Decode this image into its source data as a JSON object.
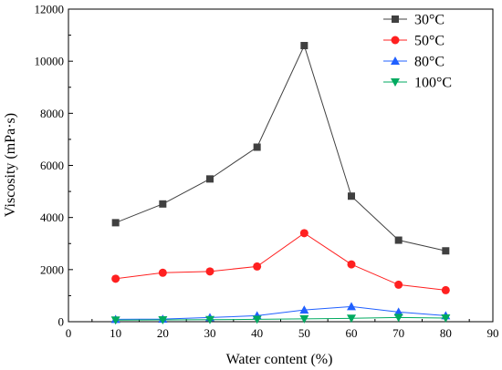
{
  "chart_data": {
    "type": "line",
    "xlabel": "Water content (%)",
    "ylabel": "Viscosity (mPa·s)",
    "xlim": [
      0,
      90
    ],
    "ylim": [
      0,
      12000
    ],
    "xticks": [
      0,
      10,
      20,
      30,
      40,
      50,
      60,
      70,
      80,
      90
    ],
    "yticks": [
      0,
      2000,
      4000,
      6000,
      8000,
      10000,
      12000
    ],
    "x": [
      10,
      20,
      30,
      40,
      50,
      60,
      70,
      80
    ],
    "grid": false,
    "legend_position": "top-right",
    "series": [
      {
        "name": "30°C",
        "color": "#404040",
        "marker": "square",
        "values": [
          3800,
          4520,
          5480,
          6700,
          10600,
          4820,
          3130,
          2720
        ]
      },
      {
        "name": "50°C",
        "color": "#ff2020",
        "marker": "circle",
        "values": [
          1650,
          1880,
          1930,
          2120,
          3400,
          2200,
          1420,
          1210
        ]
      },
      {
        "name": "80°C",
        "color": "#2060ff",
        "marker": "triangle-up",
        "values": [
          90,
          100,
          160,
          230,
          450,
          580,
          370,
          230
        ]
      },
      {
        "name": "100°C",
        "color": "#00aa60",
        "marker": "triangle-down",
        "values": [
          60,
          70,
          80,
          90,
          110,
          130,
          160,
          140
        ]
      }
    ]
  }
}
